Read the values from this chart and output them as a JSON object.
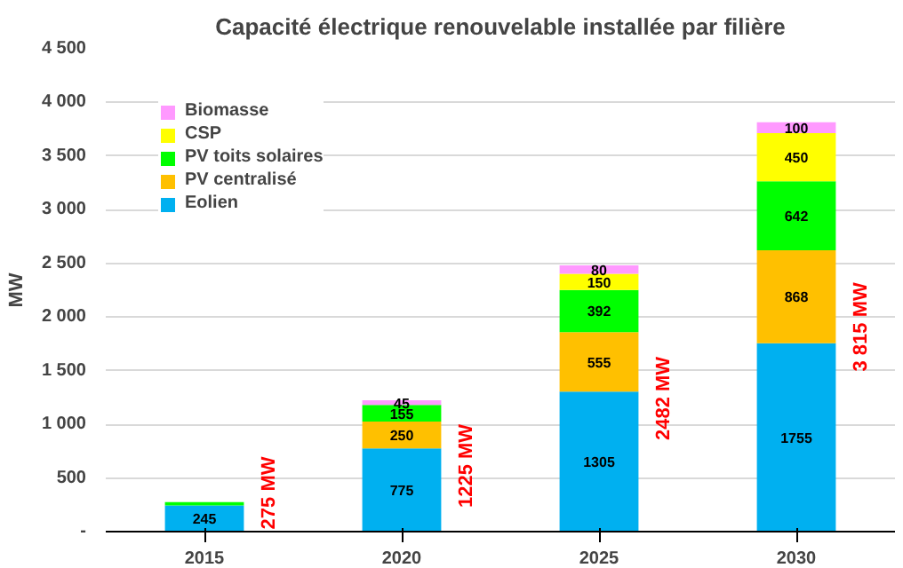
{
  "chart_data": {
    "type": "bar",
    "title": "Capacité électrique renouvelable installée par filière",
    "ylabel": "MW",
    "categories": [
      "2015",
      "2020",
      "2025",
      "2030"
    ],
    "stacked": true,
    "series": [
      {
        "name": "Eolien",
        "color": "#00b0f0",
        "values": [
          245,
          775,
          1305,
          1755
        ],
        "value_labels": [
          "245",
          "775",
          "1305",
          "1755"
        ]
      },
      {
        "name": "PV centralisé",
        "color": "#ffc000",
        "values": [
          null,
          250,
          555,
          868
        ],
        "value_labels": [
          null,
          "250",
          "555",
          "868"
        ]
      },
      {
        "name": "PV toits solaires",
        "color": "#00ff00",
        "values": [
          30,
          155,
          392,
          642
        ],
        "value_labels": [
          null,
          "155",
          "392",
          "642"
        ]
      },
      {
        "name": "CSP",
        "color": "#ffff00",
        "values": [
          null,
          null,
          150,
          450
        ],
        "value_labels": [
          null,
          null,
          "150",
          "450"
        ]
      },
      {
        "name": "Biomasse",
        "color": "#ff99ff",
        "values": [
          null,
          45,
          80,
          100
        ],
        "value_labels": [
          null,
          "45",
          "80",
          "100"
        ]
      }
    ],
    "totals": [
      "275 MW",
      "1225 MW",
      "2482 MW",
      "3 815 MW"
    ],
    "ylim": [
      0,
      4500
    ],
    "yticks": [
      {
        "value": 0,
        "label": "-"
      },
      500,
      {
        "value": 1000,
        "label": "1 000"
      },
      {
        "value": 1500,
        "label": "1 500"
      },
      {
        "value": 2000,
        "label": "2 000"
      },
      {
        "value": 2500,
        "label": "2 500"
      },
      {
        "value": 3000,
        "label": "3 000"
      },
      {
        "value": 3500,
        "label": "3 500"
      },
      {
        "value": 4000,
        "label": "4 000"
      },
      {
        "value": 4500,
        "label": "4 500"
      }
    ],
    "grid": "y",
    "legend": "top left"
  }
}
